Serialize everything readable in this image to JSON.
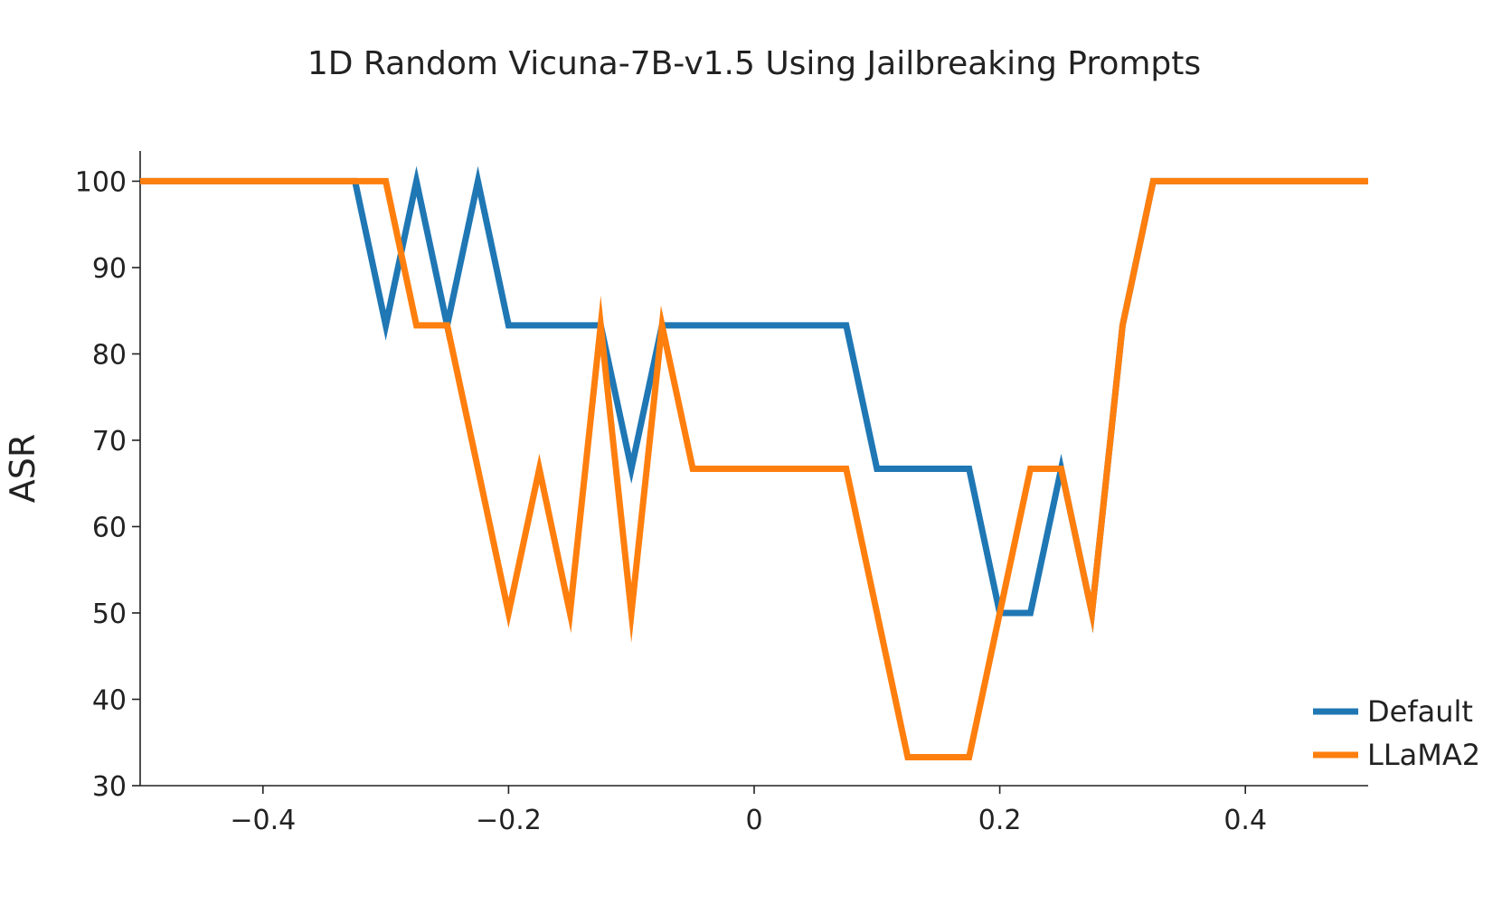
{
  "chart_data": {
    "type": "line",
    "title": "1D Random Vicuna-7B-v1.5 Using Jailbreaking Prompts",
    "xlabel": "",
    "ylabel": "ASR",
    "xlim": [
      -0.5,
      0.5
    ],
    "ylim": [
      30,
      103.5
    ],
    "x_ticks": [
      -0.4,
      -0.2,
      0,
      0.2,
      0.4
    ],
    "x_tick_labels": [
      "−0.4",
      "−0.2",
      "0",
      "0.2",
      "0.4"
    ],
    "y_ticks": [
      30,
      40,
      50,
      60,
      70,
      80,
      90,
      100
    ],
    "y_tick_labels": [
      "30",
      "40",
      "50",
      "60",
      "70",
      "80",
      "90",
      "100"
    ],
    "grid": false,
    "legend_position": "bottom-right",
    "x": [
      -0.5,
      -0.475,
      -0.45,
      -0.425,
      -0.4,
      -0.375,
      -0.35,
      -0.325,
      -0.3,
      -0.275,
      -0.25,
      -0.225,
      -0.2,
      -0.175,
      -0.15,
      -0.125,
      -0.1,
      -0.075,
      -0.05,
      -0.025,
      0,
      0.025,
      0.05,
      0.075,
      0.1,
      0.125,
      0.15,
      0.175,
      0.2,
      0.225,
      0.25,
      0.275,
      0.3,
      0.325,
      0.35,
      0.375,
      0.4,
      0.425,
      0.45,
      0.475,
      0.5
    ],
    "series": [
      {
        "name": "Default",
        "color": "#1f77b4",
        "values": [
          100,
          100,
          100,
          100,
          100,
          100,
          100,
          100,
          83.3,
          100,
          83.3,
          100,
          83.3,
          83.3,
          83.3,
          83.3,
          66.7,
          83.3,
          83.3,
          83.3,
          83.3,
          83.3,
          83.3,
          83.3,
          66.7,
          66.7,
          66.7,
          66.7,
          50,
          50,
          66.7,
          50,
          83.3,
          100,
          100,
          100,
          100,
          100,
          100,
          100,
          100
        ]
      },
      {
        "name": "LLaMA2",
        "color": "#ff7f0e",
        "values": [
          100,
          100,
          100,
          100,
          100,
          100,
          100,
          100,
          100,
          83.3,
          83.3,
          66.7,
          50,
          66.7,
          50,
          83.3,
          50,
          83.3,
          66.7,
          66.7,
          66.7,
          66.7,
          66.7,
          66.7,
          50,
          33.3,
          33.3,
          33.3,
          50,
          66.7,
          66.7,
          50,
          83.3,
          100,
          100,
          100,
          100,
          100,
          100,
          100,
          100
        ]
      }
    ]
  }
}
